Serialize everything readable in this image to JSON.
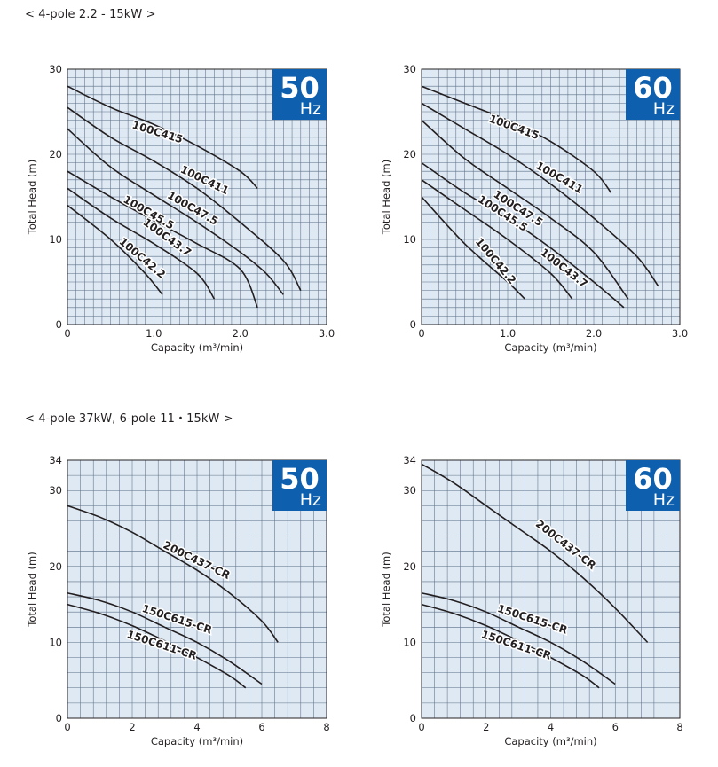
{
  "sections": [
    {
      "title": "< 4-pole  2.2 - 15kW >"
    },
    {
      "title": "< 4-pole  37kW, 6-pole  11・15kW >"
    }
  ],
  "chart_data": [
    {
      "type": "line",
      "badge": {
        "value": "50",
        "unit": "Hz"
      },
      "xlabel": "Capacity (m³/min)",
      "ylabel": "Total Head (m)",
      "xlim": [
        0,
        3.0
      ],
      "ylim": [
        0,
        30
      ],
      "xticks": [
        {
          "v": 0,
          "label": "0"
        },
        {
          "v": 1,
          "label": "1.0"
        },
        {
          "v": 2,
          "label": "2.0"
        },
        {
          "v": 3,
          "label": "3.0"
        }
      ],
      "yticks": [
        {
          "v": 0,
          "label": "0"
        },
        {
          "v": 10,
          "label": "10"
        },
        {
          "v": 20,
          "label": "20"
        },
        {
          "v": 30,
          "label": "30"
        }
      ],
      "grid_x": 0.1,
      "grid_y": 1,
      "series": [
        {
          "name": "100C415",
          "points": [
            [
              0,
              28
            ],
            [
              0.5,
              25.5
            ],
            [
              1.0,
              23.5
            ],
            [
              1.5,
              21
            ],
            [
              2.0,
              18
            ],
            [
              2.2,
              16
            ]
          ]
        },
        {
          "name": "100C411",
          "points": [
            [
              0,
              25.5
            ],
            [
              0.5,
              22
            ],
            [
              1.0,
              19.2
            ],
            [
              1.5,
              16
            ],
            [
              2.0,
              12
            ],
            [
              2.5,
              7.5
            ],
            [
              2.7,
              4
            ]
          ]
        },
        {
          "name": "100C47.5",
          "points": [
            [
              0,
              23
            ],
            [
              0.5,
              18.5
            ],
            [
              1.0,
              15.2
            ],
            [
              1.5,
              12
            ],
            [
              2.0,
              8.5
            ],
            [
              2.3,
              6
            ],
            [
              2.5,
              3.5
            ]
          ]
        },
        {
          "name": "100C45.5",
          "points": [
            [
              0,
              18
            ],
            [
              0.5,
              15
            ],
            [
              1.0,
              12.2
            ],
            [
              1.5,
              9.5
            ],
            [
              2.0,
              6.5
            ],
            [
              2.2,
              2
            ]
          ]
        },
        {
          "name": "100C43.7",
          "points": [
            [
              0,
              16
            ],
            [
              0.5,
              12.5
            ],
            [
              1.0,
              9.5
            ],
            [
              1.5,
              6
            ],
            [
              1.7,
              3
            ]
          ]
        },
        {
          "name": "100C42.2",
          "points": [
            [
              0,
              14
            ],
            [
              0.5,
              10
            ],
            [
              0.9,
              6
            ],
            [
              1.1,
              3.5
            ]
          ]
        }
      ],
      "labels": [
        {
          "series": "100C415",
          "x": 1.03,
          "y": 22.2,
          "angle": 17
        },
        {
          "series": "100C411",
          "x": 1.57,
          "y": 16.6,
          "angle": 26
        },
        {
          "series": "100C47.5",
          "x": 1.43,
          "y": 13.3,
          "angle": 30
        },
        {
          "series": "100C45.5",
          "x": 0.92,
          "y": 12.8,
          "angle": 30
        },
        {
          "series": "100C43.7",
          "x": 1.13,
          "y": 9.9,
          "angle": 36
        },
        {
          "series": "100C42.2",
          "x": 0.84,
          "y": 7.5,
          "angle": 40
        }
      ]
    },
    {
      "type": "line",
      "badge": {
        "value": "60",
        "unit": "Hz"
      },
      "xlabel": "Capacity (m³/min)",
      "ylabel": "Total Head (m)",
      "xlim": [
        0,
        3.0
      ],
      "ylim": [
        0,
        30
      ],
      "xticks": [
        {
          "v": 0,
          "label": "0"
        },
        {
          "v": 1,
          "label": "1.0"
        },
        {
          "v": 2,
          "label": "2.0"
        },
        {
          "v": 3,
          "label": "3.0"
        }
      ],
      "yticks": [
        {
          "v": 0,
          "label": "0"
        },
        {
          "v": 10,
          "label": "10"
        },
        {
          "v": 20,
          "label": "20"
        },
        {
          "v": 30,
          "label": "30"
        }
      ],
      "grid_x": 0.1,
      "grid_y": 1,
      "series": [
        {
          "name": "100C415",
          "points": [
            [
              0,
              28
            ],
            [
              0.5,
              26
            ],
            [
              1.0,
              24
            ],
            [
              1.5,
              21.5
            ],
            [
              2.0,
              18
            ],
            [
              2.2,
              15.5
            ]
          ]
        },
        {
          "name": "100C411",
          "points": [
            [
              0,
              26
            ],
            [
              0.5,
              23
            ],
            [
              1.0,
              20
            ],
            [
              1.5,
              16.5
            ],
            [
              2.0,
              12.5
            ],
            [
              2.5,
              8
            ],
            [
              2.75,
              4.5
            ]
          ]
        },
        {
          "name": "100C47.5",
          "points": [
            [
              0,
              24
            ],
            [
              0.5,
              19.5
            ],
            [
              1.0,
              16
            ],
            [
              1.5,
              12.5
            ],
            [
              2.0,
              8.5
            ],
            [
              2.4,
              3
            ]
          ]
        },
        {
          "name": "100C45.5",
          "points": [
            [
              0,
              19
            ],
            [
              0.5,
              15.5
            ],
            [
              1.0,
              12.5
            ],
            [
              1.5,
              9
            ],
            [
              2.0,
              5
            ],
            [
              2.35,
              2
            ]
          ]
        },
        {
          "name": "100C43.7",
          "points": [
            [
              0,
              17
            ],
            [
              0.5,
              13.5
            ],
            [
              1.0,
              10
            ],
            [
              1.5,
              6
            ],
            [
              1.75,
              3
            ]
          ]
        },
        {
          "name": "100C42.2",
          "points": [
            [
              0,
              15
            ],
            [
              0.5,
              9.5
            ],
            [
              1.0,
              5
            ],
            [
              1.2,
              3
            ]
          ]
        }
      ],
      "labels": [
        {
          "series": "100C415",
          "x": 1.06,
          "y": 22.8,
          "angle": 20
        },
        {
          "series": "100C411",
          "x": 1.58,
          "y": 16.9,
          "angle": 30
        },
        {
          "series": "100C47.5",
          "x": 1.1,
          "y": 13.3,
          "angle": 33
        },
        {
          "series": "100C45.5",
          "x": 0.92,
          "y": 12.7,
          "angle": 33
        },
        {
          "series": "100C43.7",
          "x": 1.63,
          "y": 6.3,
          "angle": 38
        },
        {
          "series": "100C42.2",
          "x": 0.83,
          "y": 7.2,
          "angle": 50
        }
      ]
    },
    {
      "type": "line",
      "badge": {
        "value": "50",
        "unit": "Hz"
      },
      "xlabel": "Capacity (m³/min)",
      "ylabel": "Total Head (m)",
      "xlim": [
        0,
        8
      ],
      "ylim": [
        0,
        34
      ],
      "xticks": [
        {
          "v": 0,
          "label": "0"
        },
        {
          "v": 2,
          "label": "2"
        },
        {
          "v": 4,
          "label": "4"
        },
        {
          "v": 6,
          "label": "6"
        },
        {
          "v": 8,
          "label": "8"
        }
      ],
      "yticks": [
        {
          "v": 0,
          "label": "0"
        },
        {
          "v": 10,
          "label": "10"
        },
        {
          "v": 20,
          "label": "20"
        },
        {
          "v": 30,
          "label": "30"
        },
        {
          "v": 34,
          "label": "34"
        }
      ],
      "grid_x": 0.4,
      "grid_y": 2,
      "series": [
        {
          "name": "200C437-CR",
          "points": [
            [
              0,
              28
            ],
            [
              1,
              26.5
            ],
            [
              2,
              24.5
            ],
            [
              3,
              22
            ],
            [
              4,
              19.5
            ],
            [
              5,
              16.5
            ],
            [
              6,
              12.8
            ],
            [
              6.5,
              10
            ]
          ]
        },
        {
          "name": "150C615-CR",
          "points": [
            [
              0,
              16.5
            ],
            [
              1,
              15.5
            ],
            [
              2,
              14
            ],
            [
              3,
              12
            ],
            [
              4,
              10
            ],
            [
              5,
              7.5
            ],
            [
              6,
              4.5
            ]
          ]
        },
        {
          "name": "150C611-CR",
          "points": [
            [
              0,
              15
            ],
            [
              1,
              13.8
            ],
            [
              2,
              12.2
            ],
            [
              3,
              10.2
            ],
            [
              4,
              8
            ],
            [
              5,
              5.6
            ],
            [
              5.5,
              4
            ]
          ]
        }
      ],
      "labels": [
        {
          "series": "200C437-CR",
          "x": 3.94,
          "y": 20.4,
          "angle": 26
        },
        {
          "series": "150C615-CR",
          "x": 3.35,
          "y": 12.6,
          "angle": 18
        },
        {
          "series": "150C611-CR",
          "x": 2.88,
          "y": 9.2,
          "angle": 18
        }
      ]
    },
    {
      "type": "line",
      "badge": {
        "value": "60",
        "unit": "Hz"
      },
      "xlabel": "Capacity (m³/min)",
      "ylabel": "Total Head (m)",
      "xlim": [
        0,
        8
      ],
      "ylim": [
        0,
        34
      ],
      "xticks": [
        {
          "v": 0,
          "label": "0"
        },
        {
          "v": 2,
          "label": "2"
        },
        {
          "v": 4,
          "label": "4"
        },
        {
          "v": 6,
          "label": "6"
        },
        {
          "v": 8,
          "label": "8"
        }
      ],
      "yticks": [
        {
          "v": 0,
          "label": "0"
        },
        {
          "v": 10,
          "label": "10"
        },
        {
          "v": 20,
          "label": "20"
        },
        {
          "v": 30,
          "label": "30"
        },
        {
          "v": 34,
          "label": "34"
        }
      ],
      "grid_x": 0.4,
      "grid_y": 2,
      "series": [
        {
          "name": "200C437-CR",
          "points": [
            [
              0,
              33.5
            ],
            [
              1,
              31
            ],
            [
              2,
              28
            ],
            [
              3,
              25
            ],
            [
              4,
              22
            ],
            [
              5,
              18.5
            ],
            [
              6,
              14.5
            ],
            [
              7,
              10
            ]
          ]
        },
        {
          "name": "150C615-CR",
          "points": [
            [
              0,
              16.5
            ],
            [
              1,
              15.5
            ],
            [
              2,
              14
            ],
            [
              3,
              12
            ],
            [
              4,
              10
            ],
            [
              5,
              7.5
            ],
            [
              6,
              4.5
            ]
          ]
        },
        {
          "name": "150C611-CR",
          "points": [
            [
              0,
              15
            ],
            [
              1,
              13.8
            ],
            [
              2,
              12.2
            ],
            [
              3,
              10.2
            ],
            [
              4,
              8
            ],
            [
              5,
              5.6
            ],
            [
              5.5,
              4
            ]
          ]
        }
      ],
      "labels": [
        {
          "series": "200C437-CR",
          "x": 4.4,
          "y": 22.5,
          "angle": 38
        },
        {
          "series": "150C615-CR",
          "x": 3.4,
          "y": 12.6,
          "angle": 18
        },
        {
          "series": "150C611-CR",
          "x": 2.9,
          "y": 9.2,
          "angle": 18
        }
      ]
    }
  ]
}
